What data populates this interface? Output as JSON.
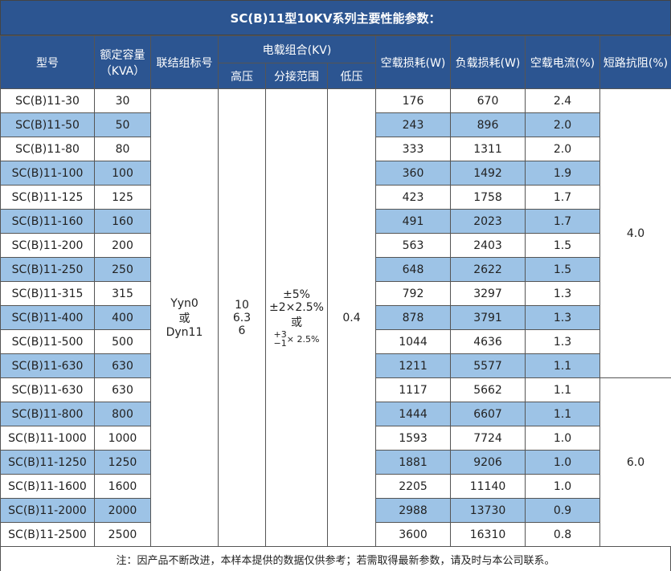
{
  "title": "SC(B)11型10KV系列主要性能参数：",
  "headers": {
    "model": "型号",
    "capacity": [
      "额定容量",
      "（KVA）"
    ],
    "vector_group": "联结组标号",
    "voltage_group": "电载组合(KV)",
    "hv": "高压",
    "tap": "分接范围",
    "lv": "低压",
    "no_load_loss": "空载损耗(W)",
    "load_loss": "负载损耗(W)",
    "no_load_current": "空载电流(%)",
    "impedance": "短路抗阻(%)"
  },
  "vector_group": [
    "Yyn0",
    "或",
    "Dyn11"
  ],
  "hv": [
    "10",
    "6.3",
    "6"
  ],
  "tap": {
    "lines": [
      "±5%",
      "±2×2.5%",
      "或"
    ],
    "top": "+3",
    "bottom": "−1",
    "rest": "× 2.5%"
  },
  "lv": "0.4",
  "impedance": [
    {
      "value": "4.0",
      "rows": 12
    },
    {
      "value": "6.0",
      "rows": 7
    }
  ],
  "rows": [
    [
      "SC(B)11-30",
      "30",
      "176",
      "670",
      "2.4"
    ],
    [
      "SC(B)11-50",
      "50",
      "243",
      "896",
      "2.0"
    ],
    [
      "SC(B)11-80",
      "80",
      "333",
      "1311",
      "2.0"
    ],
    [
      "SC(B)11-100",
      "100",
      "360",
      "1492",
      "1.9"
    ],
    [
      "SC(B)11-125",
      "125",
      "423",
      "1758",
      "1.7"
    ],
    [
      "SC(B)11-160",
      "160",
      "491",
      "2023",
      "1.7"
    ],
    [
      "SC(B)11-200",
      "200",
      "563",
      "2403",
      "1.5"
    ],
    [
      "SC(B)11-250",
      "250",
      "648",
      "2622",
      "1.5"
    ],
    [
      "SC(B)11-315",
      "315",
      "792",
      "3297",
      "1.3"
    ],
    [
      "SC(B)11-400",
      "400",
      "878",
      "3791",
      "1.3"
    ],
    [
      "SC(B)11-500",
      "500",
      "1044",
      "4636",
      "1.3"
    ],
    [
      "SC(B)11-630",
      "630",
      "1211",
      "5577",
      "1.1"
    ],
    [
      "SC(B)11-630",
      "630",
      "1117",
      "5662",
      "1.1"
    ],
    [
      "SC(B)11-800",
      "800",
      "1444",
      "6607",
      "1.1"
    ],
    [
      "SC(B)11-1000",
      "1000",
      "1593",
      "7724",
      "1.0"
    ],
    [
      "SC(B)11-1250",
      "1250",
      "1881",
      "9206",
      "1.0"
    ],
    [
      "SC(B)11-1600",
      "1600",
      "2205",
      "11140",
      "1.0"
    ],
    [
      "SC(B)11-2000",
      "2000",
      "2988",
      "13730",
      "0.9"
    ],
    [
      "SC(B)11-2500",
      "2500",
      "3600",
      "16310",
      "0.8"
    ]
  ],
  "note": "注：因产品不断改进，本样本提供的数据仅供参考；若需取得最新参数，请及时与本公司联系。"
}
